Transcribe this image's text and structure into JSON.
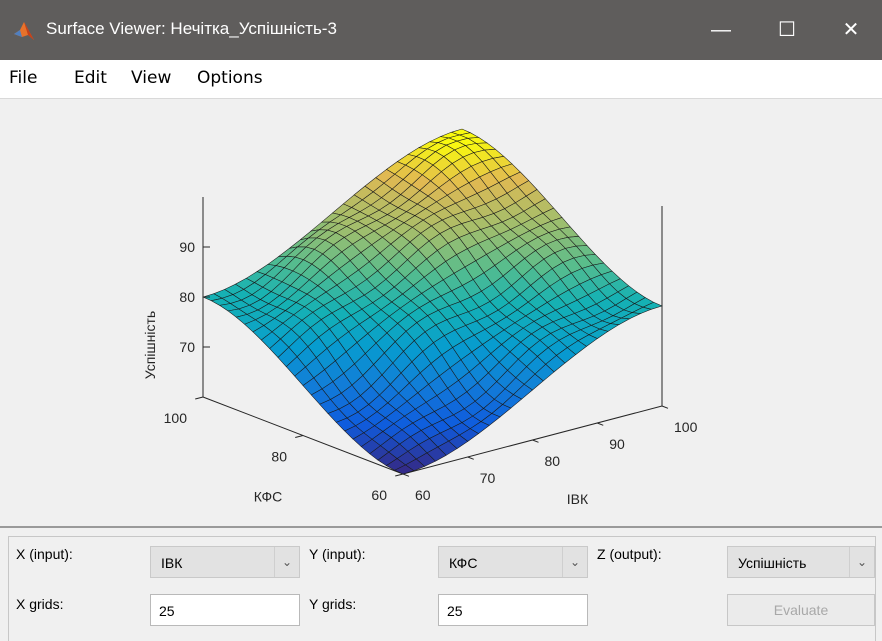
{
  "window": {
    "title": "Surface Viewer: Нечітка_Успішність-3",
    "minimize_glyph": "—",
    "maximize_glyph": "☐",
    "close_glyph": "✕",
    "app_icon": "matlab-icon"
  },
  "menu": [
    {
      "label": "File"
    },
    {
      "label": "Edit"
    },
    {
      "label": "View"
    },
    {
      "label": "Options"
    }
  ],
  "chart_data": {
    "type": "surface",
    "xlabel": "ІВК",
    "ylabel": "КФС",
    "zlabel": "Успішність",
    "xlim": [
      60,
      100
    ],
    "ylim": [
      60,
      100
    ],
    "zlim": [
      60,
      100
    ],
    "x_ticks": [
      "60",
      "70",
      "80",
      "90",
      "100"
    ],
    "y_ticks": [
      "60",
      "80",
      "100"
    ],
    "z_ticks": [
      "70",
      "80",
      "90"
    ],
    "grid_points": 25,
    "colormap": "parula",
    "z_min": 60,
    "z_max": 100,
    "corner_values": {
      "x60_y60": 60,
      "x60_y100": 80,
      "x100_y60": 80,
      "x100_y100": 100
    }
  },
  "controls": {
    "x_input_label": "X (input):",
    "x_input_value": "ІВК",
    "y_input_label": "Y (input):",
    "y_input_value": "КФС",
    "z_output_label": "Z (output):",
    "z_output_value": "Успішність",
    "x_grids_label": "X grids:",
    "x_grids_value": "25",
    "y_grids_label": "Y grids:",
    "y_grids_value": "25",
    "evaluate_label": "Evaluate",
    "chevron_icon": "chevron-down-icon"
  }
}
